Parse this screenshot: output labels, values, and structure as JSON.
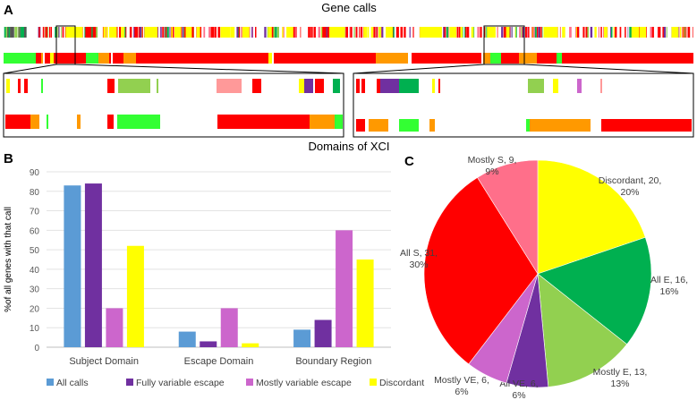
{
  "panels": {
    "a": {
      "letter": "A",
      "top_label": "Gene calls",
      "bottom_label": "Domains of XCI"
    },
    "b": {
      "letter": "B"
    },
    "c": {
      "letter": "C"
    }
  },
  "palette": {
    "subject": "#ff0000",
    "escape": "#00b050",
    "mostly_escape": "#92d050",
    "variable_escape": "#7030a0",
    "mostly_variable": "#cc66cc",
    "mostly_subject": "#ff6f8a",
    "discordant": "#ffff00",
    "orange": "#ff9900",
    "light_green": "#33ff33",
    "pink_light": "#ff9999"
  },
  "chart_data": [
    {
      "type": "bar",
      "ylabel": "%of all genes with that call",
      "ylim": [
        0,
        90
      ],
      "yticks": [
        0,
        10,
        20,
        30,
        40,
        50,
        60,
        70,
        80,
        90
      ],
      "grid": true,
      "legend_position": "bottom",
      "categories": [
        "Subject Domain",
        "Escape Domain",
        "Boundary Region"
      ],
      "series": [
        {
          "name": "All calls",
          "color": "#5b9bd5",
          "values": [
            83,
            8,
            9
          ]
        },
        {
          "name": "Fully variable escape",
          "color": "#7030a0",
          "values": [
            84,
            3,
            14
          ]
        },
        {
          "name": "Mostly variable escape",
          "color": "#cc66cc",
          "values": [
            20,
            20,
            60
          ]
        },
        {
          "name": "Discordant",
          "color": "#ffff00",
          "values": [
            52,
            2,
            45
          ]
        }
      ]
    },
    {
      "type": "pie",
      "slices": [
        {
          "label_line1": "Discordant, 20,",
          "label_line2": "20%",
          "value": 20,
          "color": "#ffff00"
        },
        {
          "label_line1": "All E, 16,",
          "label_line2": "16%",
          "value": 16,
          "color": "#00b050"
        },
        {
          "label_line1": "Mostly E, 13,",
          "label_line2": "13%",
          "value": 13,
          "color": "#92d050"
        },
        {
          "label_line1": "All VE, 6,",
          "label_line2": "6%",
          "value": 6,
          "color": "#7030a0"
        },
        {
          "label_line1": "Mostly VE, 6,",
          "label_line2": "6%",
          "value": 6,
          "color": "#cc66cc"
        },
        {
          "label_line1": "All S, 31,",
          "label_line2": "30%",
          "value": 31,
          "color": "#ff0000"
        },
        {
          "label_line1": "Mostly S, 9,",
          "label_line2": "9%",
          "value": 9,
          "color": "#ff6f8a"
        }
      ]
    }
  ]
}
